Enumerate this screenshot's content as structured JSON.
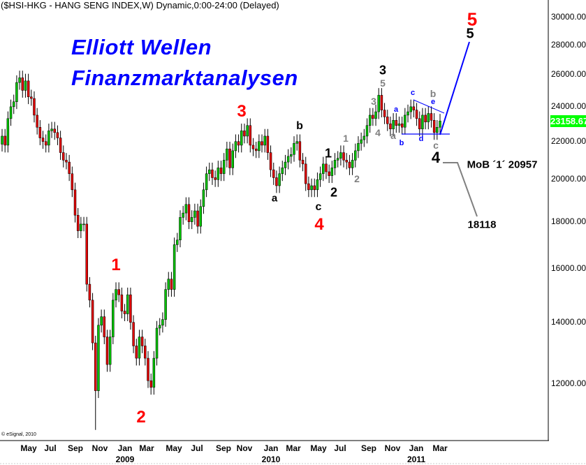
{
  "header": "($HSI-HKG - HANG SENG INDEX,W) Dynamic,0:00-24:00 (Delayed)",
  "title_lines": [
    "Elliott Wellen",
    "Finanzmarktanalysen"
  ],
  "copyright": "© eSignal, 2010",
  "chart_data": {
    "type": "candlestick",
    "symbol": "$HSI-HKG",
    "interval": "weekly",
    "y_scale": "log",
    "ylim": [
      10500,
      30500
    ],
    "y_ticks": [
      "30000.00",
      "28000.00",
      "26000.00",
      "24000.00",
      "22000.00",
      "20000.00",
      "18000.00",
      "16000.00",
      "14000.00",
      "12000.00"
    ],
    "last_price": "23158.67",
    "x_month_labels": [
      "May",
      "Jul",
      "Sep",
      "Nov",
      "Jan",
      "Mar",
      "May",
      "Jul",
      "Sep",
      "Nov",
      "Jan",
      "Mar",
      "May",
      "Jul",
      "Sep",
      "Nov",
      "Jan",
      "Mar"
    ],
    "x_year_labels": [
      "2009",
      "2010",
      "2011"
    ],
    "weekly_closes": [
      22300,
      21800,
      23300,
      24000,
      24300,
      25500,
      25800,
      25000,
      25600,
      24600,
      24500,
      23500,
      22800,
      22200,
      22000,
      21800,
      22600,
      22700,
      22500,
      22200,
      21400,
      21000,
      20900,
      20300,
      19500,
      18300,
      17600,
      17900,
      17900,
      15400,
      14800,
      13300,
      11800,
      13900,
      14200,
      13500,
      12600,
      13500,
      14800,
      15200,
      15000,
      14400,
      14300,
      15000,
      14000,
      13200,
      12800,
      13500,
      13200,
      12800,
      12100,
      11900,
      12800,
      13800,
      13900,
      14100,
      15200,
      15600,
      15200,
      17000,
      17200,
      18200,
      18400,
      18800,
      18000,
      18200,
      18500,
      17800,
      18700,
      19500,
      20300,
      20500,
      20100,
      20000,
      20600,
      20300,
      21000,
      21600,
      20600,
      21500,
      22000,
      21800,
      22600,
      22300,
      22900,
      21800,
      21600,
      21500,
      22000,
      21800,
      22300,
      21400,
      20500,
      20100,
      19700,
      20300,
      20600,
      20900,
      21200,
      21300,
      21900,
      22000,
      21000,
      20800,
      19800,
      19500,
      19700,
      19500,
      20000,
      20300,
      20800,
      20400,
      20200,
      20600,
      21000,
      21100,
      21400,
      21000,
      20900,
      20600,
      21000,
      21500,
      21900,
      22100,
      22300,
      22900,
      23500,
      23300,
      23700,
      24700,
      23800,
      23400,
      23000,
      22700,
      23200,
      22900,
      23000,
      22800,
      23500,
      23700,
      24000,
      23800,
      23300,
      22700,
      23500,
      23100,
      23600,
      23200,
      22500,
      22800,
      23158.67
    ],
    "colors": {
      "up": "#00c000",
      "down": "#e00000",
      "projection": "#0000ff",
      "triangle": "#0000ff",
      "target_line": "#808080",
      "current_price_bg": "#00ff00"
    },
    "wave_labels": [
      {
        "text": "1",
        "color": "#ff0000"
      },
      {
        "text": "2",
        "color": "#ff0000"
      },
      {
        "text": "3",
        "color": "#ff0000"
      },
      {
        "text": "a",
        "color": "#000000"
      },
      {
        "text": "b",
        "color": "#000000"
      },
      {
        "text": "c",
        "color": "#000000"
      },
      {
        "text": "4",
        "color": "#ff0000"
      },
      {
        "text": "1",
        "color": "#000000"
      },
      {
        "text": "2",
        "color": "#000000"
      },
      {
        "text": "1",
        "color": "#808080"
      },
      {
        "text": "2",
        "color": "#808080"
      },
      {
        "text": "3",
        "color": "#808080"
      },
      {
        "text": "4",
        "color": "#808080"
      },
      {
        "text": "5",
        "color": "#808080"
      },
      {
        "text": "3",
        "color": "#000000"
      },
      {
        "text": "a",
        "color": "#808080"
      },
      {
        "text": "a",
        "color": "#0000ff"
      },
      {
        "text": "b",
        "color": "#0000ff"
      },
      {
        "text": "c",
        "color": "#0000ff"
      },
      {
        "text": "d",
        "color": "#0000ff"
      },
      {
        "text": "e",
        "color": "#0000ff"
      },
      {
        "text": "b",
        "color": "#808080"
      },
      {
        "text": "c",
        "color": "#808080"
      },
      {
        "text": "4",
        "color": "#000000"
      },
      {
        "text": "5",
        "color": "#ff0000"
      },
      {
        "text": "5",
        "color": "#000000"
      },
      {
        "text": "MoB ´1´ 20957",
        "color": "#000000"
      },
      {
        "text": "18118",
        "color": "#000000"
      }
    ]
  }
}
